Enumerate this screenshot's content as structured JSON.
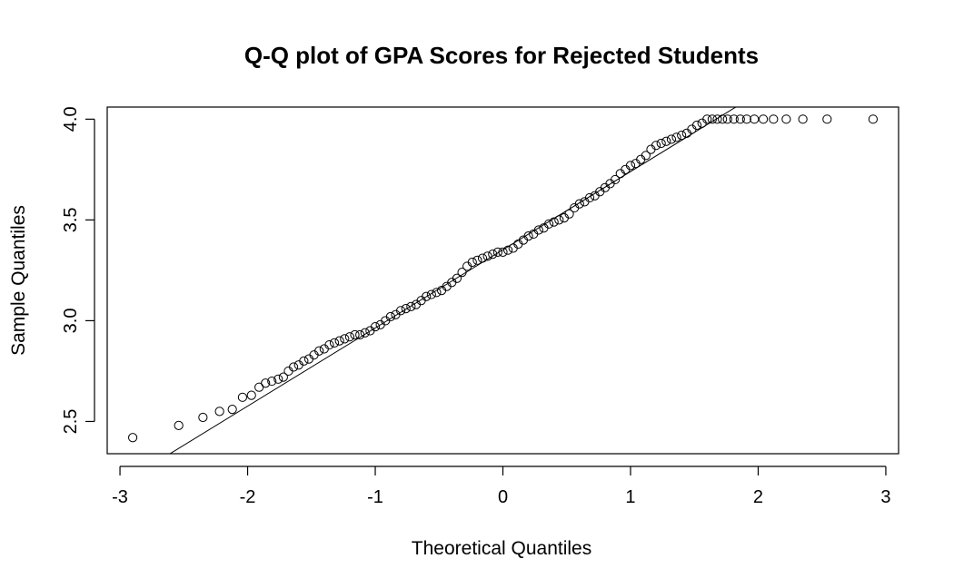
{
  "chart_data": {
    "type": "scatter",
    "title": "Q-Q plot of GPA Scores for Rejected Students",
    "xlabel": "Theoretical Quantiles",
    "ylabel": "Sample Quantiles",
    "xlim": [
      -3.1,
      3.1
    ],
    "ylim": [
      2.34,
      4.06
    ],
    "x_ticks": [
      -3,
      -2,
      -1,
      0,
      1,
      2,
      3
    ],
    "x_tick_labels": [
      "-3",
      "-2",
      "-1",
      "0",
      "1",
      "2",
      "3"
    ],
    "y_ticks": [
      2.5,
      3.0,
      3.5,
      4.0
    ],
    "y_tick_labels": [
      "2.5",
      "3.0",
      "3.5",
      "4.0"
    ],
    "grid": false,
    "legend": "none",
    "series": [
      {
        "x": [
          -2.9,
          -2.54,
          -2.35,
          -2.22,
          -2.12,
          -2.04,
          -1.97,
          -1.91,
          -1.86,
          -1.81,
          -1.76,
          -1.72,
          -1.68,
          -1.64,
          -1.6,
          -1.56,
          -1.52,
          -1.48,
          -1.44,
          -1.4,
          -1.36,
          -1.32,
          -1.28,
          -1.24,
          -1.2,
          -1.16,
          -1.12,
          -1.08,
          -1.04,
          -1.0,
          -0.96,
          -0.92,
          -0.88,
          -0.84,
          -0.8,
          -0.76,
          -0.72,
          -0.68,
          -0.64,
          -0.6,
          -0.56,
          -0.52,
          -0.48,
          -0.44,
          -0.4,
          -0.36,
          -0.32,
          -0.28,
          -0.24,
          -0.2,
          -0.16,
          -0.12,
          -0.08,
          -0.04,
          0.0,
          0.04,
          0.08,
          0.12,
          0.16,
          0.2,
          0.24,
          0.28,
          0.32,
          0.36,
          0.4,
          0.44,
          0.48,
          0.52,
          0.56,
          0.6,
          0.64,
          0.68,
          0.72,
          0.76,
          0.8,
          0.84,
          0.88,
          0.92,
          0.96,
          1.0,
          1.04,
          1.08,
          1.12,
          1.16,
          1.2,
          1.24,
          1.28,
          1.32,
          1.36,
          1.4,
          1.44,
          1.48,
          1.52,
          1.56,
          1.6,
          1.64,
          1.68,
          1.72,
          1.76,
          1.81,
          1.86,
          1.91,
          1.97,
          2.04,
          2.12,
          2.22,
          2.35,
          2.54,
          2.9
        ],
        "y": [
          2.42,
          2.48,
          2.52,
          2.55,
          2.56,
          2.62,
          2.63,
          2.67,
          2.69,
          2.7,
          2.71,
          2.72,
          2.75,
          2.77,
          2.78,
          2.8,
          2.81,
          2.83,
          2.85,
          2.86,
          2.88,
          2.89,
          2.9,
          2.91,
          2.92,
          2.93,
          2.93,
          2.94,
          2.95,
          2.97,
          2.98,
          3.0,
          3.02,
          3.03,
          3.05,
          3.06,
          3.07,
          3.08,
          3.1,
          3.12,
          3.13,
          3.14,
          3.15,
          3.17,
          3.19,
          3.21,
          3.24,
          3.27,
          3.29,
          3.3,
          3.31,
          3.32,
          3.33,
          3.34,
          3.34,
          3.35,
          3.36,
          3.38,
          3.4,
          3.42,
          3.43,
          3.45,
          3.46,
          3.48,
          3.49,
          3.5,
          3.51,
          3.53,
          3.56,
          3.58,
          3.59,
          3.61,
          3.62,
          3.64,
          3.66,
          3.68,
          3.7,
          3.73,
          3.75,
          3.77,
          3.78,
          3.8,
          3.82,
          3.85,
          3.87,
          3.88,
          3.89,
          3.9,
          3.91,
          3.92,
          3.93,
          3.95,
          3.97,
          3.98,
          4.0,
          4.0,
          4.0,
          4.0,
          4.0,
          4.0,
          4.0,
          4.0,
          4.0,
          4.0,
          4.0,
          4.0,
          4.0,
          4.0,
          4.0
        ]
      }
    ],
    "reference_line": {
      "intercept": 3.352,
      "slope": 0.388
    }
  }
}
